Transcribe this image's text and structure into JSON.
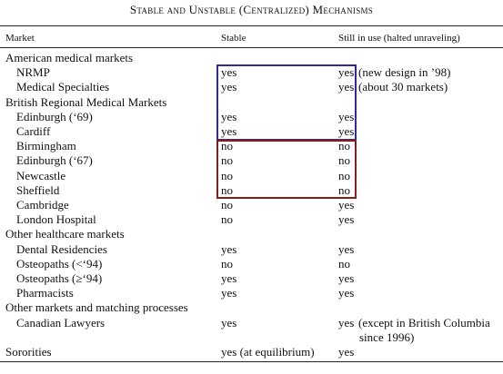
{
  "title": "Stable and Unstable (Centralized) Mechanisms",
  "table": {
    "header": [
      "Market",
      "Stable",
      "Still in use (halted unraveling)"
    ],
    "rows": [
      {
        "group": "American medical markets"
      },
      {
        "market": "NRMP",
        "stable": "yes",
        "still": "yes",
        "note": [
          "(new design in ’98)"
        ]
      },
      {
        "market": "Medical Specialties",
        "stable": "yes",
        "still": "yes",
        "note": [
          "(about 30 markets)"
        ]
      },
      {
        "group": "British Regional Medical Markets"
      },
      {
        "market": "Edinburgh (‘69)",
        "stable": "yes",
        "still": "yes"
      },
      {
        "market": "Cardiff",
        "stable": "yes",
        "still": "yes"
      },
      {
        "market": "Birmingham",
        "stable": "no",
        "still": "no"
      },
      {
        "market": "Edinburgh (‘67)",
        "stable": "no",
        "still": "no"
      },
      {
        "market": "Newcastle",
        "stable": "no",
        "still": "no"
      },
      {
        "market": "Sheffield",
        "stable": "no",
        "still": "no"
      },
      {
        "market": "Cambridge",
        "stable": "no",
        "still": "yes"
      },
      {
        "market": "London Hospital",
        "stable": "no",
        "still": "yes"
      },
      {
        "group": "Other healthcare markets"
      },
      {
        "market": "Dental Residencies",
        "stable": "yes",
        "still": "yes"
      },
      {
        "market": "Osteopaths (<‘94)",
        "stable": "no",
        "still": "no"
      },
      {
        "market": "Osteopaths (≥‘94)",
        "stable": "yes",
        "still": "yes"
      },
      {
        "market": "Pharmacists",
        "stable": "yes",
        "still": "yes"
      },
      {
        "group": "Other markets and matching processes"
      },
      {
        "market": "Canadian Lawyers",
        "stable": "yes",
        "still": "yes",
        "note": [
          "(except in British Columbia",
          "since 1996)"
        ]
      },
      {
        "group": "Sororities",
        "stable": "yes (at equilibrium)",
        "still": "yes"
      }
    ]
  }
}
